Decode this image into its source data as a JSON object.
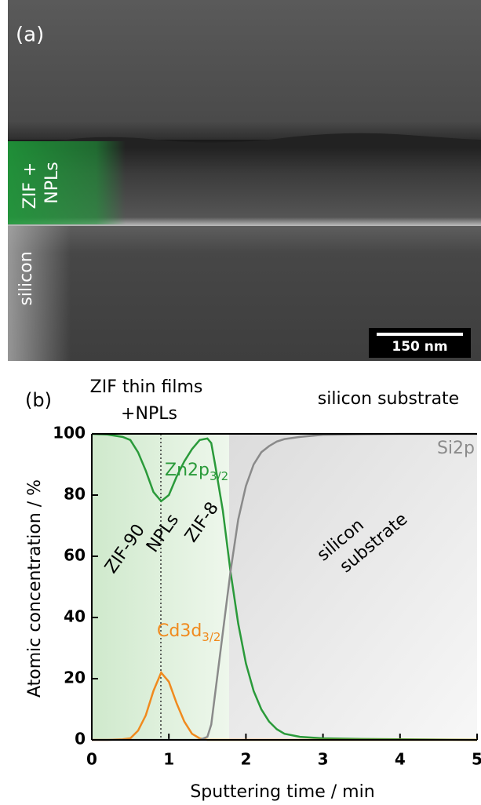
{
  "panel_a": {
    "label": "(a)",
    "overlay_labels": {
      "film": [
        "ZIF +",
        "NPLs"
      ],
      "substrate": "silicon"
    },
    "scale_bar": "150 nm"
  },
  "chart_data": {
    "type": "line",
    "panel_label": "(b)",
    "region_labels": {
      "film": [
        "ZIF thin films",
        "+NPLs"
      ],
      "substrate": "silicon substrate"
    },
    "x_label": "Sputtering time / min",
    "y_label": "Atomic concentration / %",
    "xlim": [
      0,
      5
    ],
    "ylim": [
      0,
      100
    ],
    "xticks": [
      0,
      1,
      2,
      3,
      4,
      5
    ],
    "yticks": [
      0,
      20,
      40,
      60,
      80,
      100
    ],
    "x": [
      0,
      0.2,
      0.4,
      0.5,
      0.6,
      0.7,
      0.8,
      0.9,
      1.0,
      1.1,
      1.2,
      1.3,
      1.4,
      1.5,
      1.55,
      1.6,
      1.7,
      1.8,
      1.9,
      2.0,
      2.1,
      2.2,
      2.3,
      2.4,
      2.5,
      2.7,
      3.0,
      3.5,
      4.0,
      5.0
    ],
    "series": [
      {
        "name": "Zn2p",
        "subscript": "3/2",
        "color": "#2a9a3a",
        "values": [
          100,
          99.8,
          99,
          98,
          94,
          88,
          81,
          78,
          80,
          86,
          91,
          95,
          98,
          98.5,
          97,
          90,
          75,
          55,
          38,
          25,
          16,
          10,
          6,
          3.5,
          2,
          1,
          0.5,
          0.3,
          0.2,
          0
        ]
      },
      {
        "name": "Cd3d",
        "subscript": "3/2",
        "color": "#f08a1e",
        "values": [
          0,
          0,
          0.2,
          0.5,
          3,
          8,
          16,
          22,
          19,
          12,
          6,
          2,
          0.5,
          0,
          0,
          0,
          0,
          0,
          0,
          0,
          0,
          0,
          0,
          0,
          0,
          0,
          0,
          0,
          0,
          0
        ]
      },
      {
        "name": "Si2p",
        "color": "#8a8a8a",
        "values": [
          0,
          0,
          0,
          0,
          0,
          0,
          0,
          0,
          0,
          0,
          0,
          0,
          0,
          1,
          5,
          15,
          35,
          55,
          72,
          83,
          90,
          94,
          96,
          97.5,
          98.3,
          99,
          99.7,
          99.9,
          100,
          100
        ]
      }
    ],
    "annotations": [
      "ZIF-90",
      "NPLs",
      "ZIF-8",
      [
        "silicon",
        "substrate"
      ]
    ]
  }
}
